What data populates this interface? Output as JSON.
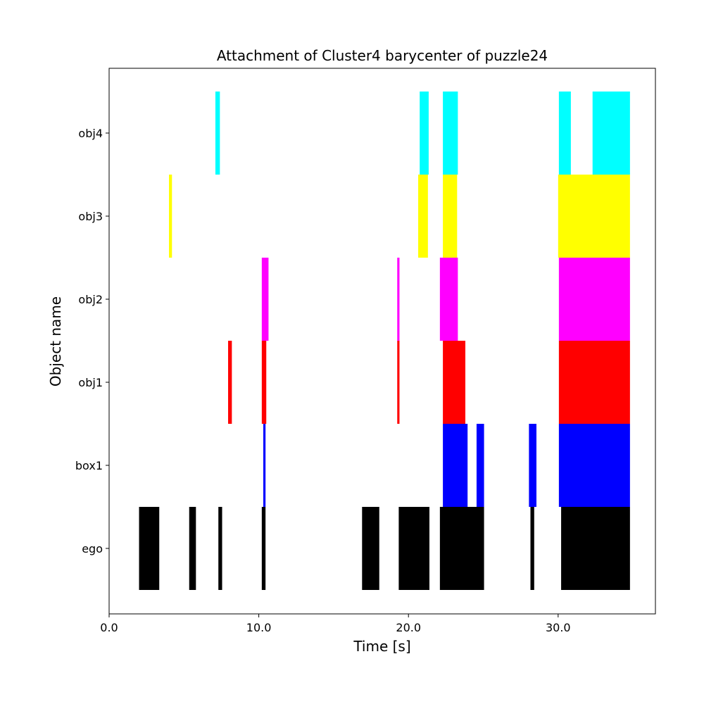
{
  "chart_data": {
    "type": "broken-barh",
    "title": "Attachment of Cluster4 barycenter of puzzle24",
    "xlabel": "Time [s]",
    "ylabel": "Object name",
    "xlim": [
      0,
      36.5
    ],
    "xticks": [
      0,
      10,
      20,
      30
    ],
    "xtick_labels": [
      "0.0",
      "10.0",
      "20.0",
      "30.0"
    ],
    "grid": false,
    "legend": "none",
    "rows": [
      {
        "name": "ego",
        "color": "#000000",
        "intervals": [
          [
            2.0,
            3.35
          ],
          [
            5.35,
            5.8
          ],
          [
            7.3,
            7.55
          ],
          [
            10.2,
            10.45
          ],
          [
            16.9,
            18.05
          ],
          [
            19.35,
            21.4
          ],
          [
            22.1,
            25.05
          ],
          [
            28.15,
            28.4
          ],
          [
            30.2,
            34.8
          ]
        ]
      },
      {
        "name": "box1",
        "color": "#0000ff",
        "intervals": [
          [
            10.3,
            10.45
          ],
          [
            22.3,
            23.95
          ],
          [
            24.55,
            25.05
          ],
          [
            28.05,
            28.55
          ],
          [
            30.05,
            34.8
          ]
        ]
      },
      {
        "name": "obj1",
        "color": "#ff0000",
        "intervals": [
          [
            7.95,
            8.2
          ],
          [
            10.2,
            10.5
          ],
          [
            19.25,
            19.4
          ],
          [
            22.3,
            23.8
          ],
          [
            30.05,
            34.8
          ]
        ]
      },
      {
        "name": "obj2",
        "color": "#ff00ff",
        "intervals": [
          [
            10.2,
            10.65
          ],
          [
            19.25,
            19.4
          ],
          [
            22.1,
            23.3
          ],
          [
            30.05,
            34.8
          ]
        ]
      },
      {
        "name": "obj3",
        "color": "#ffff00",
        "intervals": [
          [
            4.0,
            4.2
          ],
          [
            20.65,
            21.3
          ],
          [
            22.3,
            23.25
          ],
          [
            30.0,
            34.8
          ]
        ]
      },
      {
        "name": "obj4",
        "color": "#00ffff",
        "intervals": [
          [
            7.1,
            7.4
          ],
          [
            20.75,
            21.35
          ],
          [
            22.3,
            23.3
          ],
          [
            30.05,
            30.85
          ],
          [
            32.3,
            34.8
          ]
        ]
      }
    ]
  }
}
